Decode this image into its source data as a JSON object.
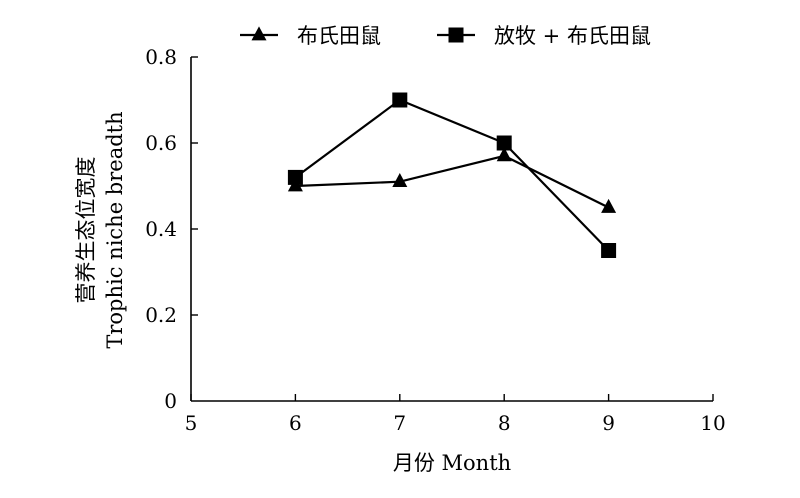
{
  "chart_data": {
    "type": "line",
    "xlabel": "月份 Month",
    "ylabel_cn": "营养生态位宽度",
    "ylabel_en": "Trophic niche breadth",
    "xlim": [
      5,
      10
    ],
    "ylim": [
      0,
      0.8
    ],
    "xticks": [
      5,
      6,
      7,
      8,
      9,
      10
    ],
    "yticks": [
      0,
      0.2,
      0.4,
      0.6,
      0.8
    ],
    "grid": false,
    "legend_position": "top",
    "series": [
      {
        "name": "布氏田鼠",
        "marker": "triangle",
        "x": [
          6,
          7,
          8,
          9
        ],
        "values": [
          0.5,
          0.51,
          0.57,
          0.45
        ]
      },
      {
        "name": "放牧 + 布氏田鼠",
        "marker": "square",
        "x": [
          6,
          7,
          8,
          9
        ],
        "values": [
          0.52,
          0.7,
          0.6,
          0.35
        ]
      }
    ],
    "colors": {
      "line": "#000000"
    }
  }
}
